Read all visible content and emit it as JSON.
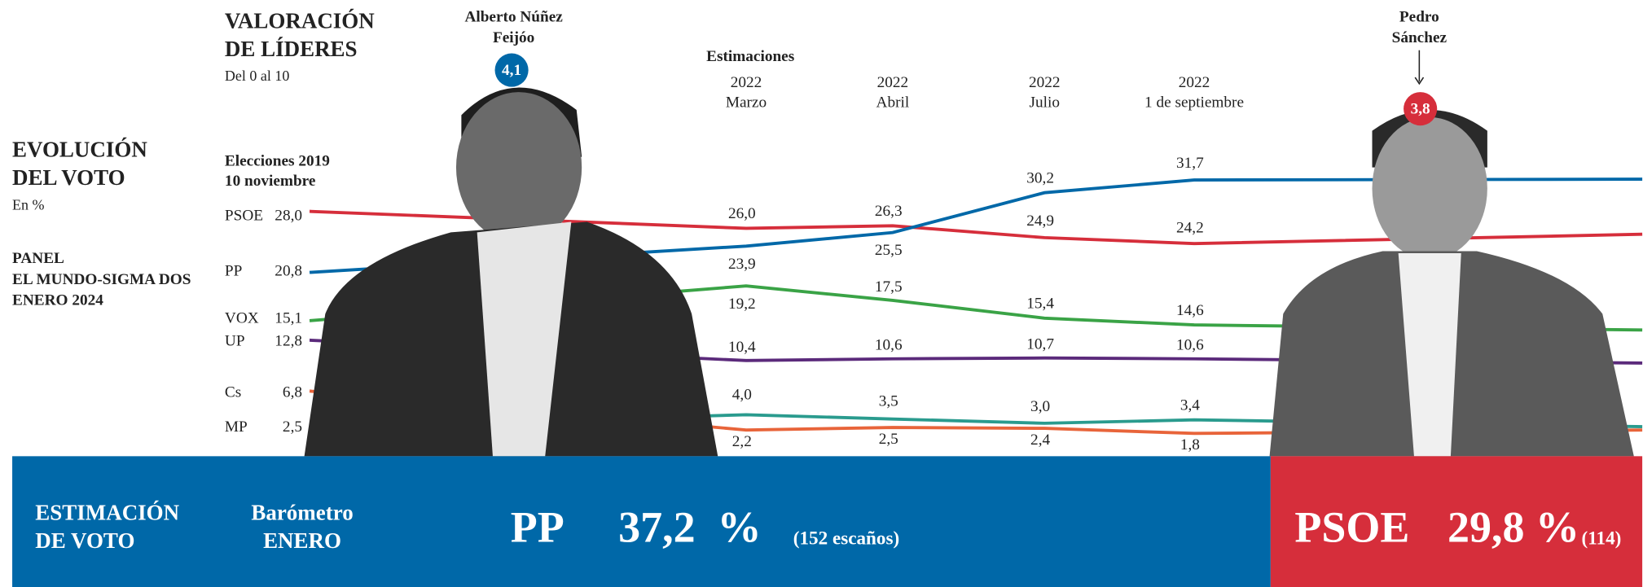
{
  "leaders_title": [
    "VALORACIÓN",
    "DE LÍDERES"
  ],
  "leaders_subtitle": "Del 0 al 10",
  "leaders": [
    {
      "name": [
        "Alberto Núñez",
        "Feijóo"
      ],
      "rating": 4.1,
      "rating_label": "4,1",
      "color": "#0068a8"
    },
    {
      "name": [
        "Pedro",
        "Sánchez"
      ],
      "rating": 3.8,
      "rating_label": "3,8",
      "color": "#d62e3b"
    }
  ],
  "source": [
    "PANEL",
    "EL MUNDO-SIGMA DOS",
    "ENERO 2024"
  ],
  "chart_data": {
    "type": "line",
    "title": [
      "EVOLUCIÓN",
      "DEL VOTO"
    ],
    "subtitle": "En %",
    "group_label": "Estimaciones",
    "categories": [
      [
        "Elecciones 2019",
        "10 noviembre"
      ],
      [
        "2022",
        "Marzo"
      ],
      [
        "2022",
        "Abril"
      ],
      [
        "2022",
        "Julio"
      ],
      [
        "2022",
        "1 de septiembre"
      ],
      null
    ],
    "ylim": [
      0,
      35
    ],
    "series": [
      {
        "name": "PSOE",
        "color": "#d62e3b",
        "values": [
          28.0,
          26.0,
          26.3,
          24.9,
          24.2,
          25.3
        ],
        "value_labels": [
          "28,0",
          "26,0",
          "26,3",
          "24,9",
          "24,2",
          null
        ]
      },
      {
        "name": "PP",
        "color": "#0068a8",
        "values": [
          20.8,
          23.9,
          25.5,
          30.2,
          31.7,
          31.8
        ],
        "value_labels": [
          "20,8",
          "23,9",
          "25,5",
          "30,2",
          "31,7",
          null
        ]
      },
      {
        "name": "VOX",
        "color": "#3aa346",
        "values": [
          15.1,
          19.2,
          17.5,
          15.4,
          14.6,
          14.0
        ],
        "value_labels": [
          "15,1",
          "19,2",
          "17,5",
          "15,4",
          "14,6",
          null
        ]
      },
      {
        "name": "UP",
        "color": "#5b2a7b",
        "values": [
          12.8,
          10.4,
          10.6,
          10.7,
          10.6,
          10.1
        ],
        "value_labels": [
          "12,8",
          "10,4",
          "10,6",
          "10,7",
          "10,6",
          null
        ]
      },
      {
        "name": "Cs",
        "color": "#e8643a",
        "values": [
          6.8,
          2.2,
          2.5,
          2.4,
          1.8,
          2.2
        ],
        "value_labels": [
          "6,8",
          "2,2",
          "2,5",
          "2,4",
          "1,8",
          null
        ]
      },
      {
        "name": "MP",
        "color": "#2a9b8e",
        "values": [
          2.5,
          4.0,
          3.5,
          3.0,
          3.4,
          2.6
        ],
        "value_labels": [
          "2,5",
          "4,0",
          "3,5",
          "3,0",
          "3,4",
          null
        ]
      }
    ]
  },
  "estimate": {
    "title": [
      "ESTIMACIÓN",
      "DE VOTO"
    ],
    "source": [
      "Barómetro",
      "ENERO"
    ],
    "parties": [
      {
        "party": "PP",
        "value": 37.2,
        "value_label": "37,2  %",
        "seats": 152,
        "seats_label": "(152 escaños)"
      },
      {
        "party": "PSOE",
        "value": 29.8,
        "value_label": "29,8 %",
        "seats": 114,
        "seats_label": "(114)"
      }
    ]
  }
}
